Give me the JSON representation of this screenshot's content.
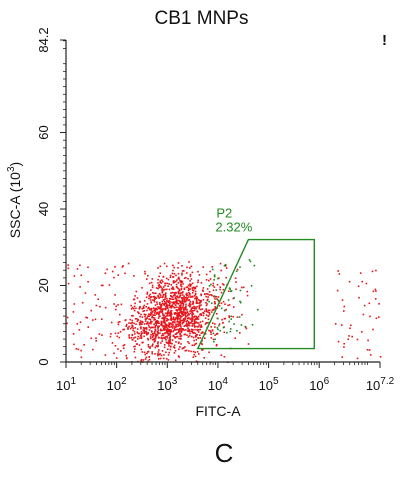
{
  "chart_data": {
    "type": "scatter",
    "title": "CB1 MNPs",
    "xlabel": "FITC-A",
    "ylabel": "SSC-A (10³)",
    "x_scale": "log",
    "xlim": [
      10,
      15848932
    ],
    "ylim": [
      0,
      84.2
    ],
    "x_ticks": [
      {
        "value": 10,
        "base": "10",
        "exp": "1"
      },
      {
        "value": 100,
        "base": "10",
        "exp": "2"
      },
      {
        "value": 1000,
        "base": "10",
        "exp": "3"
      },
      {
        "value": 10000,
        "base": "10",
        "exp": "4"
      },
      {
        "value": 100000,
        "base": "10",
        "exp": "5"
      },
      {
        "value": 1000000,
        "base": "10",
        "exp": "6"
      },
      {
        "value": 15848932,
        "base": "10",
        "exp": "7.2"
      }
    ],
    "y_ticks": [
      {
        "value": 0,
        "label": "0"
      },
      {
        "value": 20,
        "label": "20"
      },
      {
        "value": 40,
        "label": "40"
      },
      {
        "value": 60,
        "label": "60"
      },
      {
        "value": 84.2,
        "label": "84.2"
      }
    ],
    "gate": {
      "name": "P2",
      "percent": "2.32%",
      "polygon": [
        [
          4000,
          3.5
        ],
        [
          40000,
          32
        ],
        [
          800000,
          32
        ],
        [
          800000,
          3.5
        ]
      ],
      "color": "#228b22"
    },
    "point_color": "#e8141b",
    "gated_point_color": "#1f8a1f",
    "grid": false
  },
  "caption": {
    "panel_letter": "C",
    "corner_mark": "!"
  }
}
